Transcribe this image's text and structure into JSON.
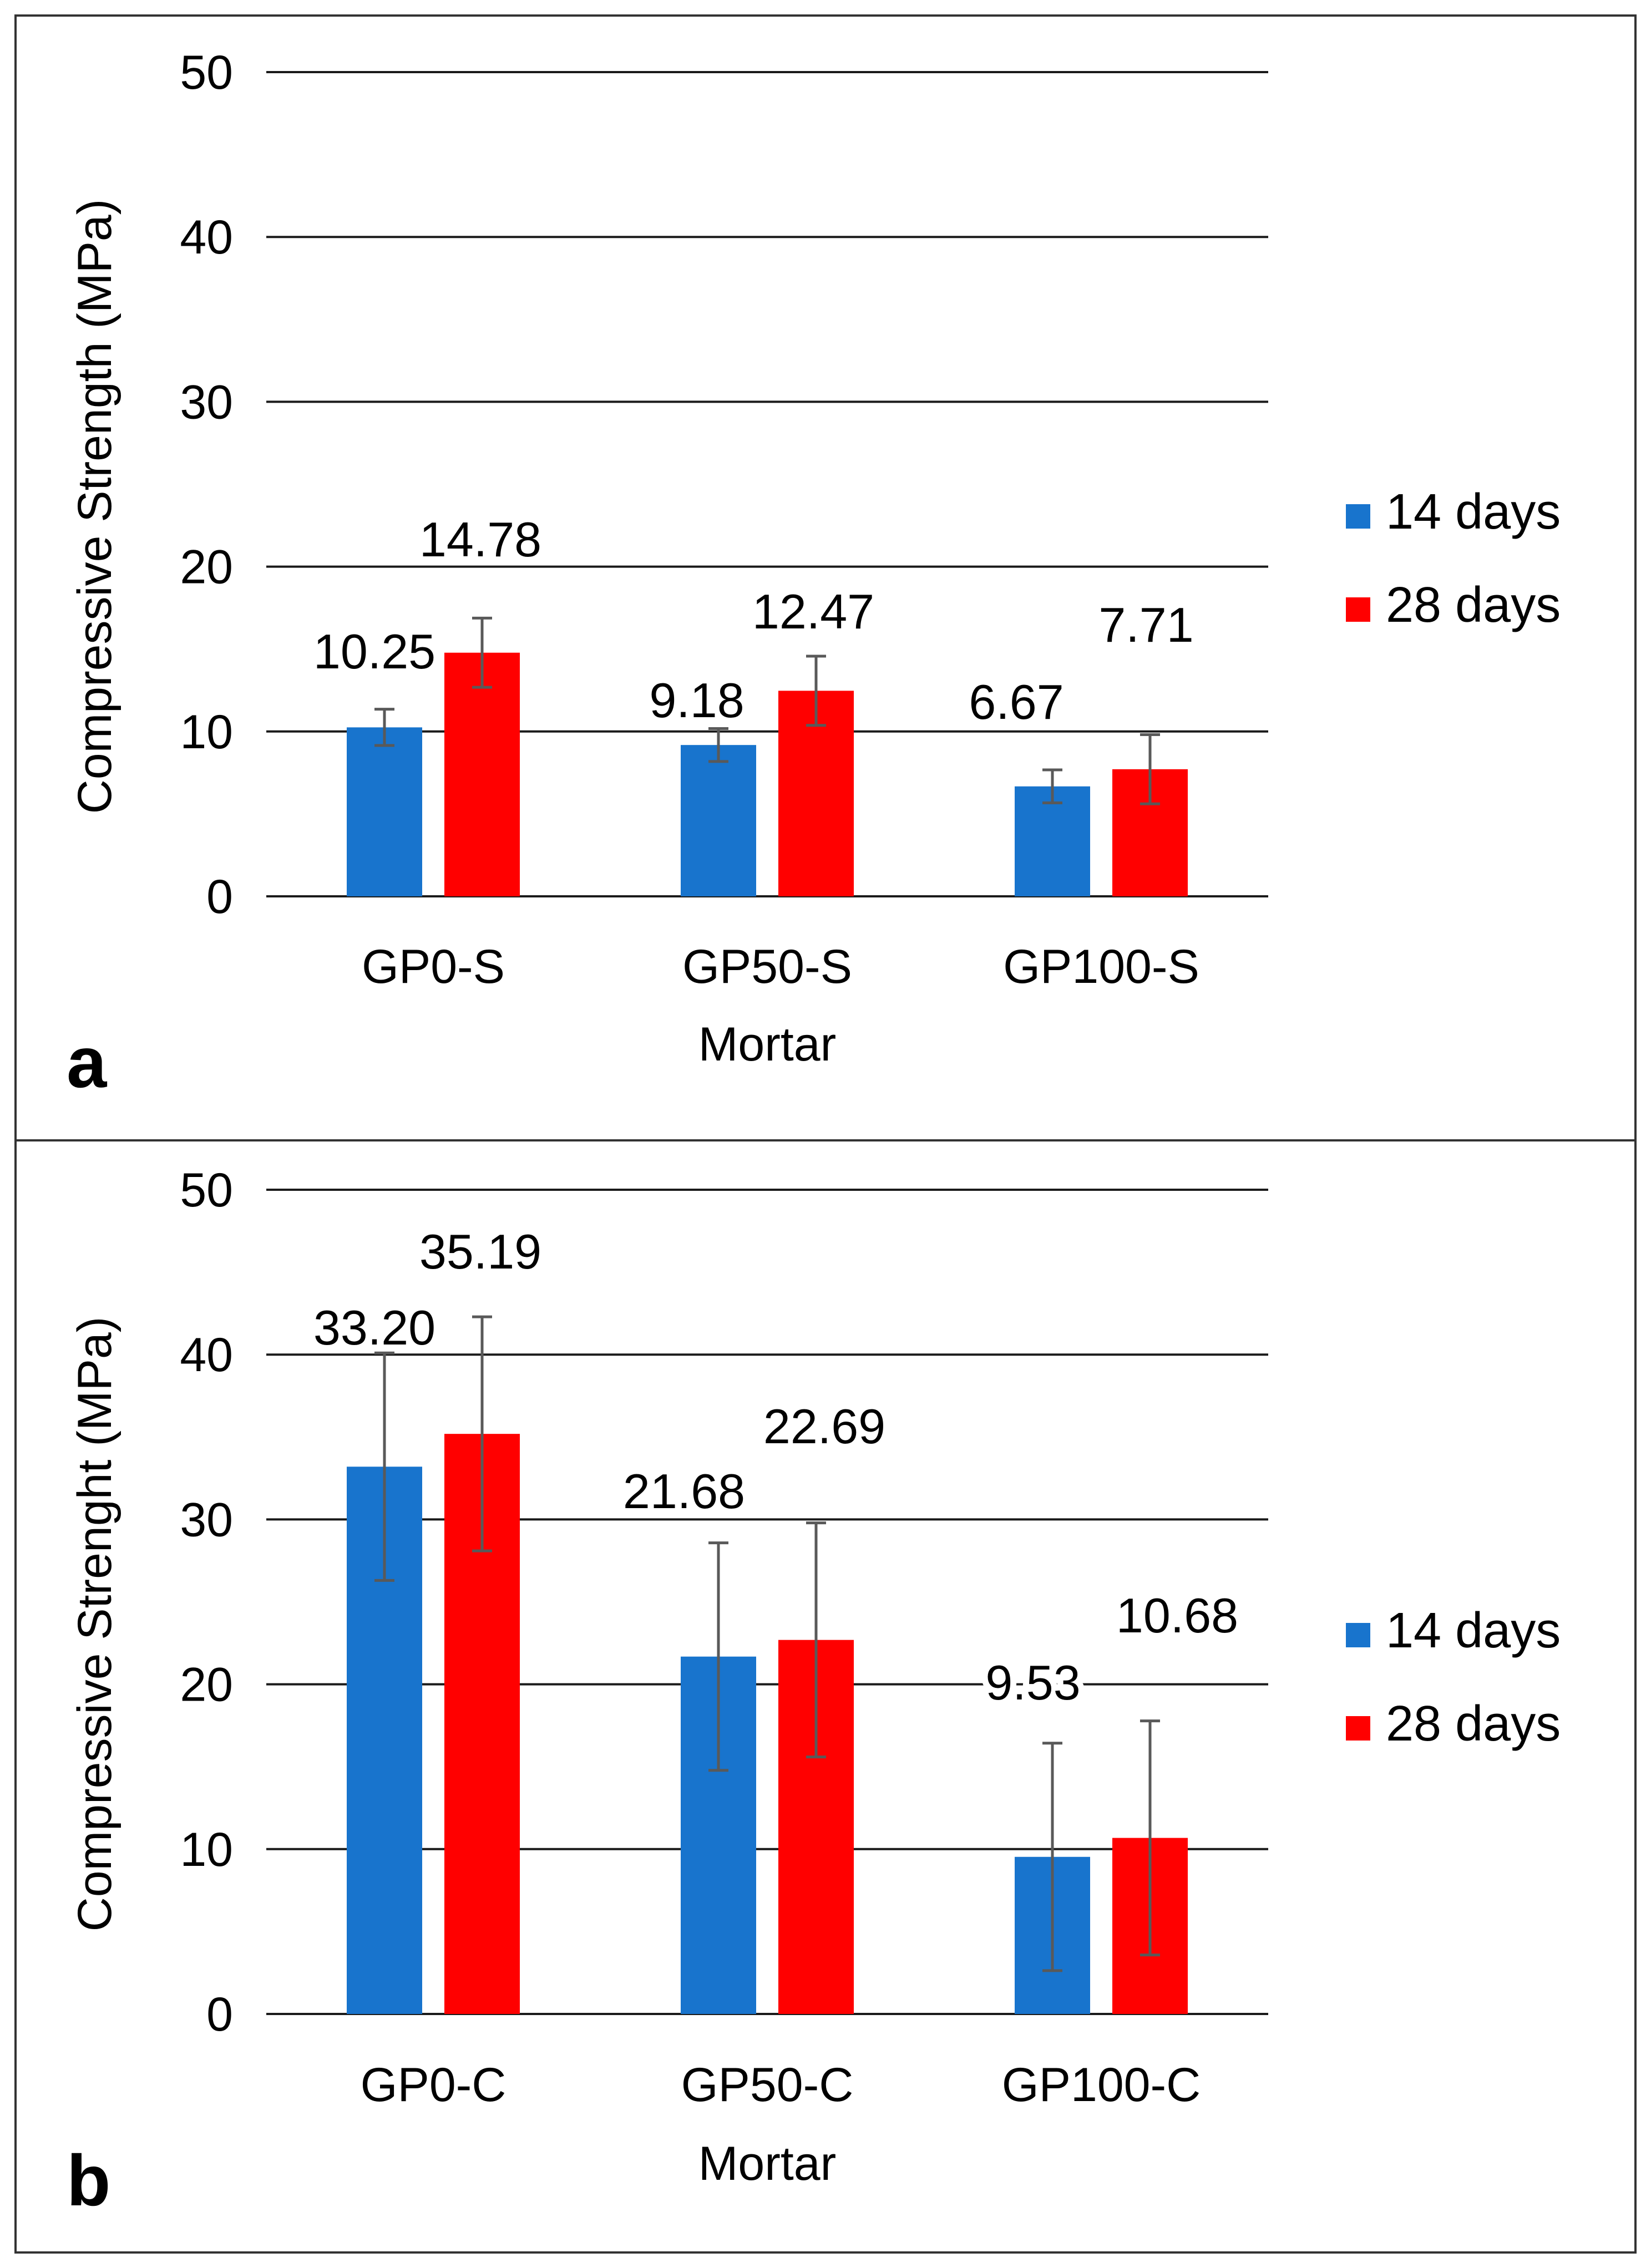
{
  "colors": {
    "series_14": "#1874cd",
    "series_28": "#ff0000",
    "grid": "#1a1a1a",
    "error_bar": "#595959"
  },
  "chart_data": [
    {
      "type": "bar",
      "panel_label": "a",
      "categories": [
        "GP0-S",
        "GP50-S",
        "GP100-S"
      ],
      "series": [
        {
          "name": "14 days",
          "values": [
            10.25,
            9.18,
            6.67
          ],
          "labels": [
            "10.25",
            "9.18",
            "6.67"
          ],
          "errors": [
            1.1,
            1.0,
            1.0
          ]
        },
        {
          "name": "28 days",
          "values": [
            14.78,
            12.47,
            7.71
          ],
          "labels": [
            "14.78",
            "12.47",
            "7.71"
          ],
          "errors": [
            2.1,
            2.1,
            2.1
          ]
        }
      ],
      "xlabel": "Mortar",
      "ylabel": "Compressive Strength (MPa)",
      "ylim": [
        0,
        50
      ],
      "yticks": [
        0,
        10,
        20,
        30,
        40,
        50
      ],
      "grid": true,
      "legend": "right"
    },
    {
      "type": "bar",
      "panel_label": "b",
      "categories": [
        "GP0-C",
        "GP50-C",
        "GP100-C"
      ],
      "series": [
        {
          "name": "14 days",
          "values": [
            33.2,
            21.68,
            9.53
          ],
          "labels": [
            "33.20",
            "21.68",
            "9.53"
          ],
          "errors": [
            6.9,
            6.9,
            6.9
          ]
        },
        {
          "name": "28 days",
          "values": [
            35.19,
            22.69,
            10.68
          ],
          "labels": [
            "35.19",
            "22.69",
            "10.68"
          ],
          "errors": [
            7.1,
            7.1,
            7.1
          ]
        }
      ],
      "xlabel": "Mortar",
      "ylabel": "Compressive Strenght (MPa)",
      "ylim": [
        0,
        50
      ],
      "yticks": [
        0,
        10,
        20,
        30,
        40,
        50
      ],
      "grid": true,
      "legend": "right"
    }
  ]
}
